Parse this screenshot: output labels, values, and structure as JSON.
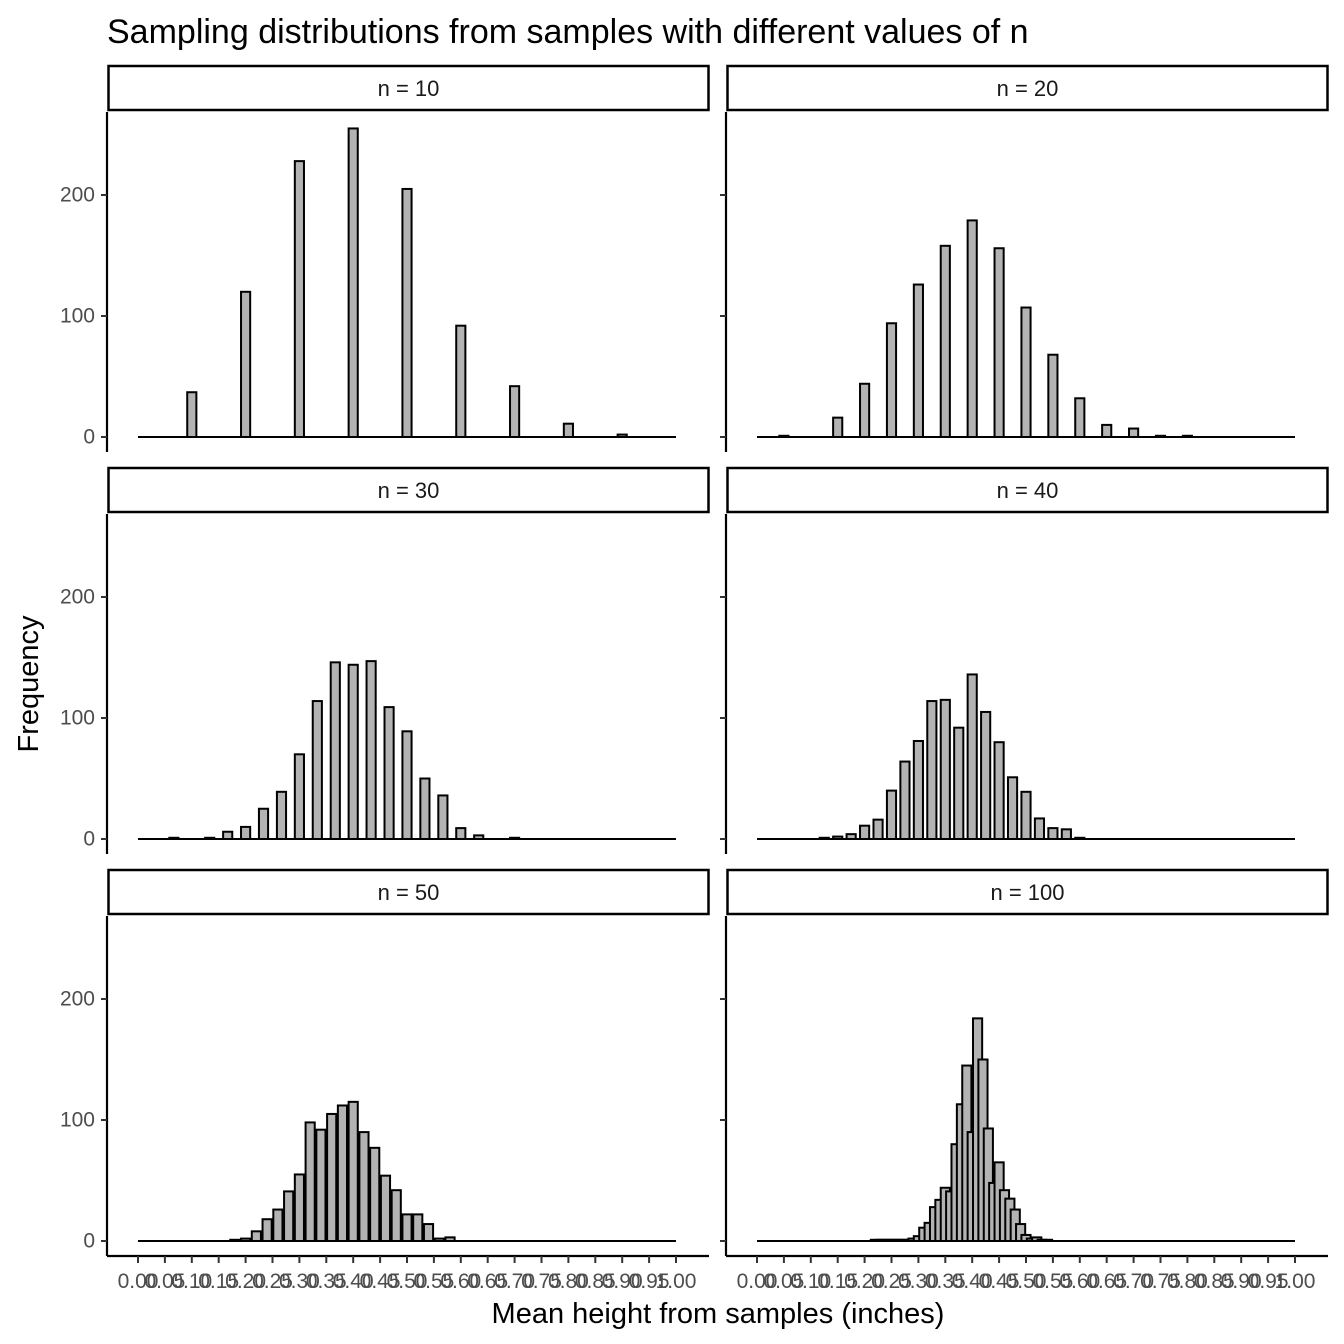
{
  "chart_data": {
    "type": "bar",
    "title": "Sampling distributions from samples with different values of n",
    "xlabel": "Mean height from samples (inches)",
    "ylabel": "Frequency",
    "ylim": [
      0,
      265
    ],
    "xlim": [
      0,
      1
    ],
    "y_ticks": [
      "0",
      "100",
      "200"
    ],
    "y_tick_values": [
      0,
      100,
      200
    ],
    "x_ticks": [
      "0.00",
      "0.05",
      "0.10",
      "0.15",
      "0.20",
      "0.25",
      "0.30",
      "0.35",
      "0.40",
      "0.45",
      "0.50",
      "0.55",
      "0.60",
      "0.65",
      "0.70",
      "0.75",
      "0.80",
      "0.85",
      "0.90",
      "0.95",
      "1.00"
    ],
    "x_tick_values": [
      0,
      0.05,
      0.1,
      0.15,
      0.2,
      0.25,
      0.3,
      0.35,
      0.4,
      0.45,
      0.5,
      0.55,
      0.6,
      0.65,
      0.7,
      0.75,
      0.8,
      0.85,
      0.9,
      0.95,
      1.0
    ],
    "bar_width": 0.017,
    "grid": false,
    "bar_fill": "#b3b3b3",
    "bar_outline": "#000000",
    "panels": [
      {
        "label": "n = 10",
        "x": [
          0.1,
          0.2,
          0.3,
          0.4,
          0.5,
          0.6,
          0.7,
          0.8,
          0.9
        ],
        "values": [
          37,
          120,
          228,
          255,
          205,
          92,
          42,
          11,
          2
        ]
      },
      {
        "label": "n = 20",
        "x": [
          0.05,
          0.15,
          0.2,
          0.25,
          0.3,
          0.35,
          0.4,
          0.45,
          0.5,
          0.55,
          0.6,
          0.65,
          0.7,
          0.75,
          0.8
        ],
        "values": [
          1,
          16,
          44,
          94,
          126,
          158,
          179,
          156,
          107,
          68,
          32,
          10,
          7,
          1,
          1
        ]
      },
      {
        "label": "n = 30",
        "x": [
          0.0667,
          0.1333,
          0.1667,
          0.2,
          0.2333,
          0.2667,
          0.3,
          0.3333,
          0.3667,
          0.4,
          0.4333,
          0.4667,
          0.5,
          0.5333,
          0.5667,
          0.6,
          0.6333,
          0.7
        ],
        "values": [
          1,
          1,
          6,
          10,
          25,
          39,
          70,
          114,
          146,
          144,
          147,
          109,
          89,
          50,
          36,
          9,
          3,
          1
        ]
      },
      {
        "label": "n = 40",
        "x": [
          0.125,
          0.15,
          0.175,
          0.2,
          0.225,
          0.25,
          0.275,
          0.3,
          0.325,
          0.35,
          0.375,
          0.4,
          0.425,
          0.45,
          0.475,
          0.5,
          0.525,
          0.55,
          0.575,
          0.6
        ],
        "values": [
          1,
          2,
          4,
          11,
          16,
          40,
          64,
          81,
          114,
          115,
          92,
          136,
          105,
          80,
          51,
          39,
          17,
          9,
          8,
          1
        ]
      },
      {
        "label": "n = 50",
        "x": [
          0.18,
          0.2,
          0.22,
          0.24,
          0.26,
          0.28,
          0.3,
          0.32,
          0.34,
          0.36,
          0.38,
          0.4,
          0.42,
          0.44,
          0.46,
          0.48,
          0.5,
          0.52,
          0.54,
          0.56,
          0.58
        ],
        "values": [
          1,
          2,
          8,
          18,
          26,
          41,
          55,
          98,
          92,
          105,
          112,
          115,
          90,
          77,
          54,
          42,
          22,
          22,
          14,
          2,
          3
        ]
      },
      {
        "label": "n = 100",
        "x": [
          0.22,
          0.23,
          0.24,
          0.25,
          0.26,
          0.27,
          0.28,
          0.29,
          0.3,
          0.31,
          0.32,
          0.33,
          0.34,
          0.35,
          0.36,
          0.37,
          0.38,
          0.39,
          0.4,
          0.41,
          0.42,
          0.43,
          0.44,
          0.45,
          0.46,
          0.47,
          0.48,
          0.49,
          0.5,
          0.51,
          0.52,
          0.53,
          0.54
        ],
        "values": [
          1,
          1,
          1,
          1,
          1,
          1,
          1,
          2,
          4,
          11,
          15,
          28,
          34,
          44,
          41,
          80,
          113,
          145,
          90,
          184,
          150,
          93,
          48,
          65,
          42,
          35,
          26,
          14,
          5,
          2,
          3,
          1,
          1
        ]
      }
    ]
  }
}
